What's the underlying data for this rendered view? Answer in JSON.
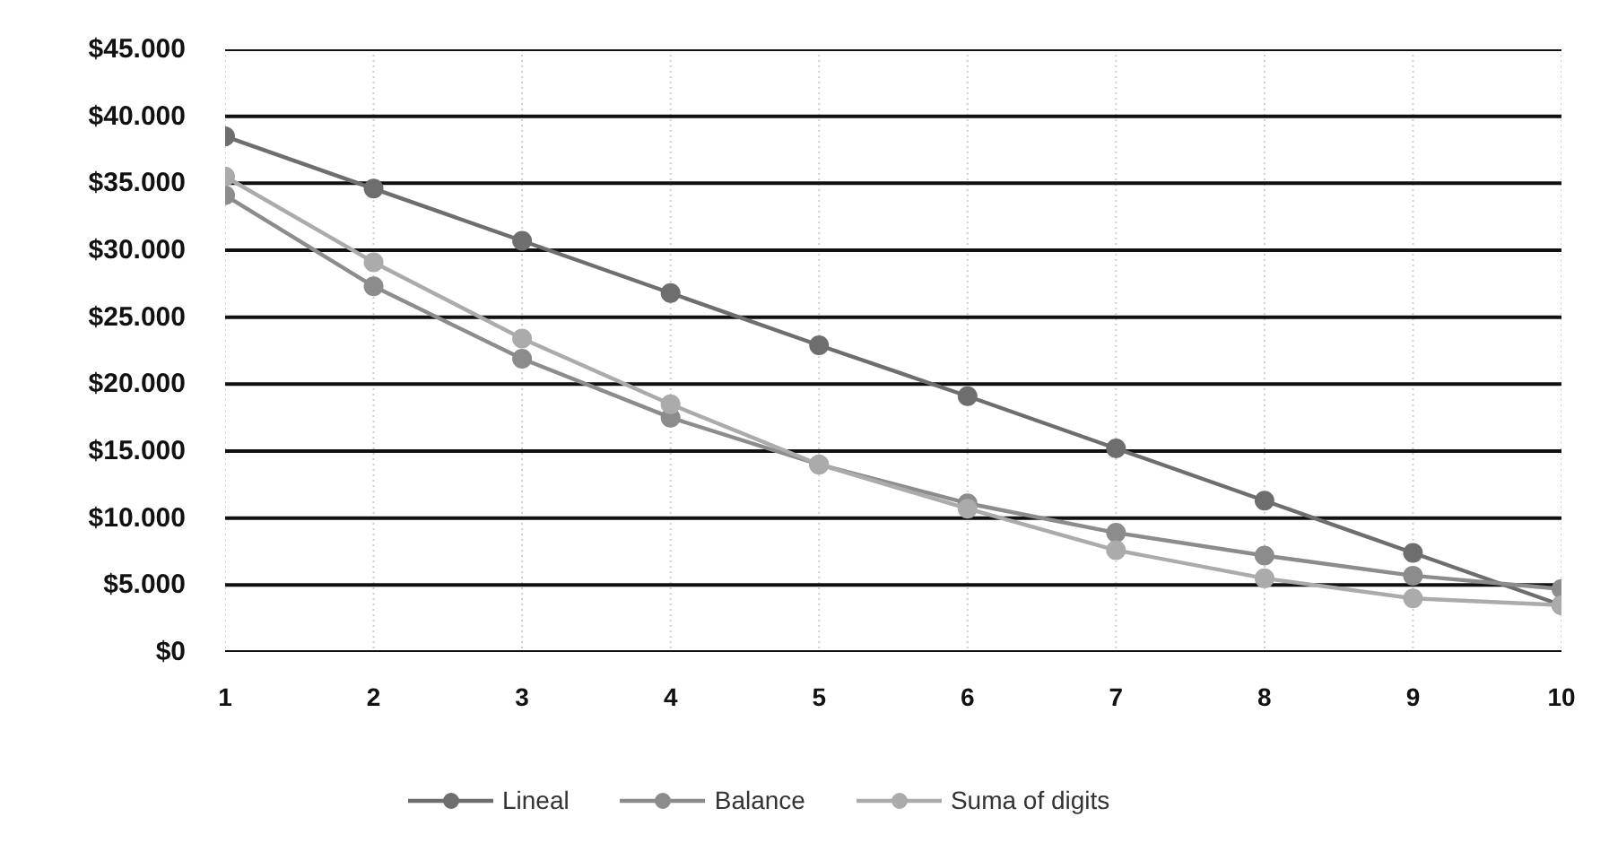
{
  "chart_data": {
    "type": "line",
    "x": [
      1,
      2,
      3,
      4,
      5,
      6,
      7,
      8,
      9,
      10
    ],
    "xlim": [
      1,
      10
    ],
    "xticks": [
      1,
      2,
      3,
      4,
      5,
      6,
      7,
      8,
      9,
      10
    ],
    "ylim": [
      0,
      45000
    ],
    "yticks": [
      {
        "value": 0,
        "label": "$0"
      },
      {
        "value": 5000,
        "label": "$5.000"
      },
      {
        "value": 10000,
        "label": "$10.000"
      },
      {
        "value": 15000,
        "label": "$15.000"
      },
      {
        "value": 20000,
        "label": "$20.000"
      },
      {
        "value": 25000,
        "label": "$25.000"
      },
      {
        "value": 30000,
        "label": "$30.000"
      },
      {
        "value": 35000,
        "label": "$35.000"
      },
      {
        "value": 40000,
        "label": "$40.000"
      },
      {
        "value": 45000,
        "label": "$45.000"
      }
    ],
    "series": [
      {
        "name": "Lineal",
        "color": "#6e6e6e",
        "values": [
          38500,
          34600,
          30700,
          26800,
          22900,
          19100,
          15200,
          11300,
          7400,
          3500
        ]
      },
      {
        "name": "Balance",
        "color": "#8c8c8c",
        "values": [
          34100,
          27300,
          21900,
          17500,
          14000,
          11100,
          8900,
          7200,
          5700,
          4700
        ]
      },
      {
        "name": "Suma of digits",
        "color": "#ababab",
        "values": [
          35500,
          29100,
          23400,
          18500,
          14000,
          10700,
          7600,
          5500,
          4000,
          3500
        ]
      }
    ],
    "grid": true,
    "legend": "bottom",
    "marker": "circle",
    "line_style": "solid"
  }
}
